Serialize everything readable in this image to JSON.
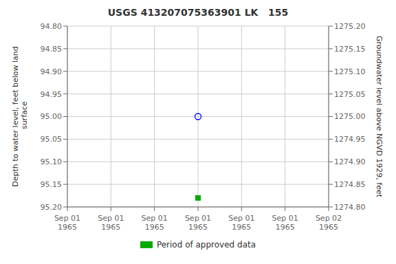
{
  "chart_data": {
    "type": "scatter",
    "title": "USGS 413207075363901 LK   155",
    "y_label": "Depth to water level, feet below land\n surface",
    "y2_label": "Groundwater level above NGVD 1929, feet",
    "categories": [
      "Sep 01\n1965",
      "Sep 01\n1965",
      "Sep 01\n1965",
      "Sep 01\n1965",
      "Sep 01\n1965",
      "Sep 01\n1965",
      "Sep 02\n1965"
    ],
    "series": [
      {
        "color": "#0000ff",
        "marker": "circle",
        "values": [
          null,
          null,
          null,
          95.0,
          null,
          null,
          null
        ]
      },
      {
        "name": "Period of approved data",
        "color": "#00aa00",
        "marker": "square",
        "values": [
          null,
          null,
          null,
          95.18,
          null,
          null,
          null
        ]
      }
    ],
    "ylim": [
      95.2,
      94.8
    ],
    "yticks": [
      {
        "value": 94.8,
        "label": "94.80"
      },
      {
        "value": 94.85,
        "label": "94.85"
      },
      {
        "value": 94.9,
        "label": "94.90"
      },
      {
        "value": 94.95,
        "label": "94.95"
      },
      {
        "value": 95.0,
        "label": "95.00"
      },
      {
        "value": 95.05,
        "label": "95.05"
      },
      {
        "value": 95.1,
        "label": "95.10"
      },
      {
        "value": 95.15,
        "label": "95.15"
      },
      {
        "value": 95.2,
        "label": "95.20"
      }
    ],
    "y2lim": [
      1274.8,
      1275.2
    ],
    "y2ticks": [
      {
        "value": 1275.2,
        "label": "1275.20"
      },
      {
        "value": 1275.15,
        "label": "1275.15"
      },
      {
        "value": 1275.1,
        "label": "1275.10"
      },
      {
        "value": 1275.05,
        "label": "1275.05"
      },
      {
        "value": 1275.0,
        "label": "1275.00"
      },
      {
        "value": 1274.95,
        "label": "1274.95"
      },
      {
        "value": 1274.9,
        "label": "1274.90"
      },
      {
        "value": 1274.85,
        "label": "1274.85"
      },
      {
        "value": 1274.8,
        "label": "1274.80"
      }
    ],
    "grid": true,
    "legend": "bottom"
  }
}
